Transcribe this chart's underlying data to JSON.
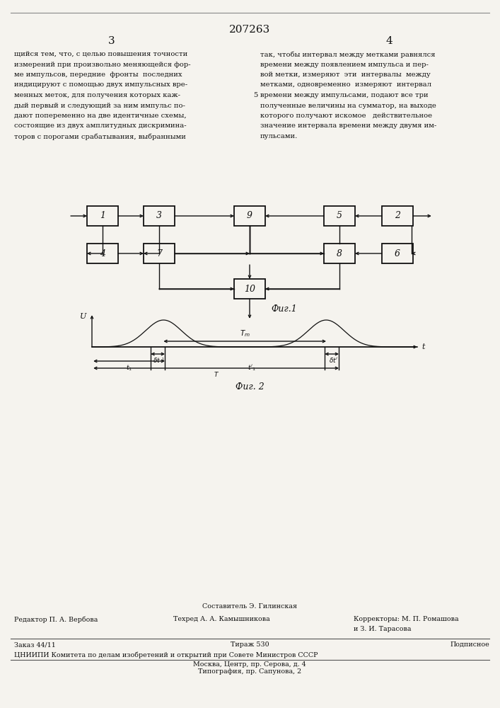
{
  "title_center": "207263",
  "page_left": "3",
  "page_right": "4",
  "bg_color": "#f5f3ee",
  "text_color": "#111111",
  "left_column_text": [
    "щийся тем, что, с целью повышения точности",
    "измерений при произвольно меняющейся фор-",
    "ме импульсов, передние  фронты  последних",
    "индицируют с помощью двух импульсных вре-",
    "менных меток, для получения которых каж-",
    "дый первый и следующий за ним импульс по-",
    "дают попеременно на две идентичные схемы,",
    "состоящие из двух амплитудных дискримина-",
    "торов с порогами срабатывания, выбранными"
  ],
  "right_column_text": [
    "так, чтобы интервал между метками равнялся",
    "времени между появлением импульса и пер-",
    "вой метки, измеряют  эти  интервалы  между",
    "метками, одновременно  измеряют  интервал",
    "времени между импульсами, подают все три",
    "полученные величины на сумматор, на выходе",
    "которого получают искомое   действительное",
    "значение интервала времени между двумя им-",
    "пульсами."
  ],
  "right_col_number": "5",
  "fig1_label": "Фиг.1",
  "fig2_label": "Фиг. 2",
  "footer_composer": "Составитель Э. Гилинская",
  "footer_editor": "Редактор П. А. Вербова",
  "footer_techred": "Техред А. А. Камышникова",
  "footer_correctors": "Корректоры: М. П. Ромашова",
  "footer_correctors2": "и З. И. Тарасова",
  "footer_order": "Заказ 44/11",
  "footer_tirazh": "Тираж 530",
  "footer_podpisnoe": "Подписное",
  "footer_cniipи": "ЦНИИПИ Комитета по делам изобретений и открытий при Совете Министров СССР",
  "footer_moscow": "Москва, Центр, пр. Серова, д. 4",
  "footer_tipografia": "Типография, пр. Сапунова, 2"
}
